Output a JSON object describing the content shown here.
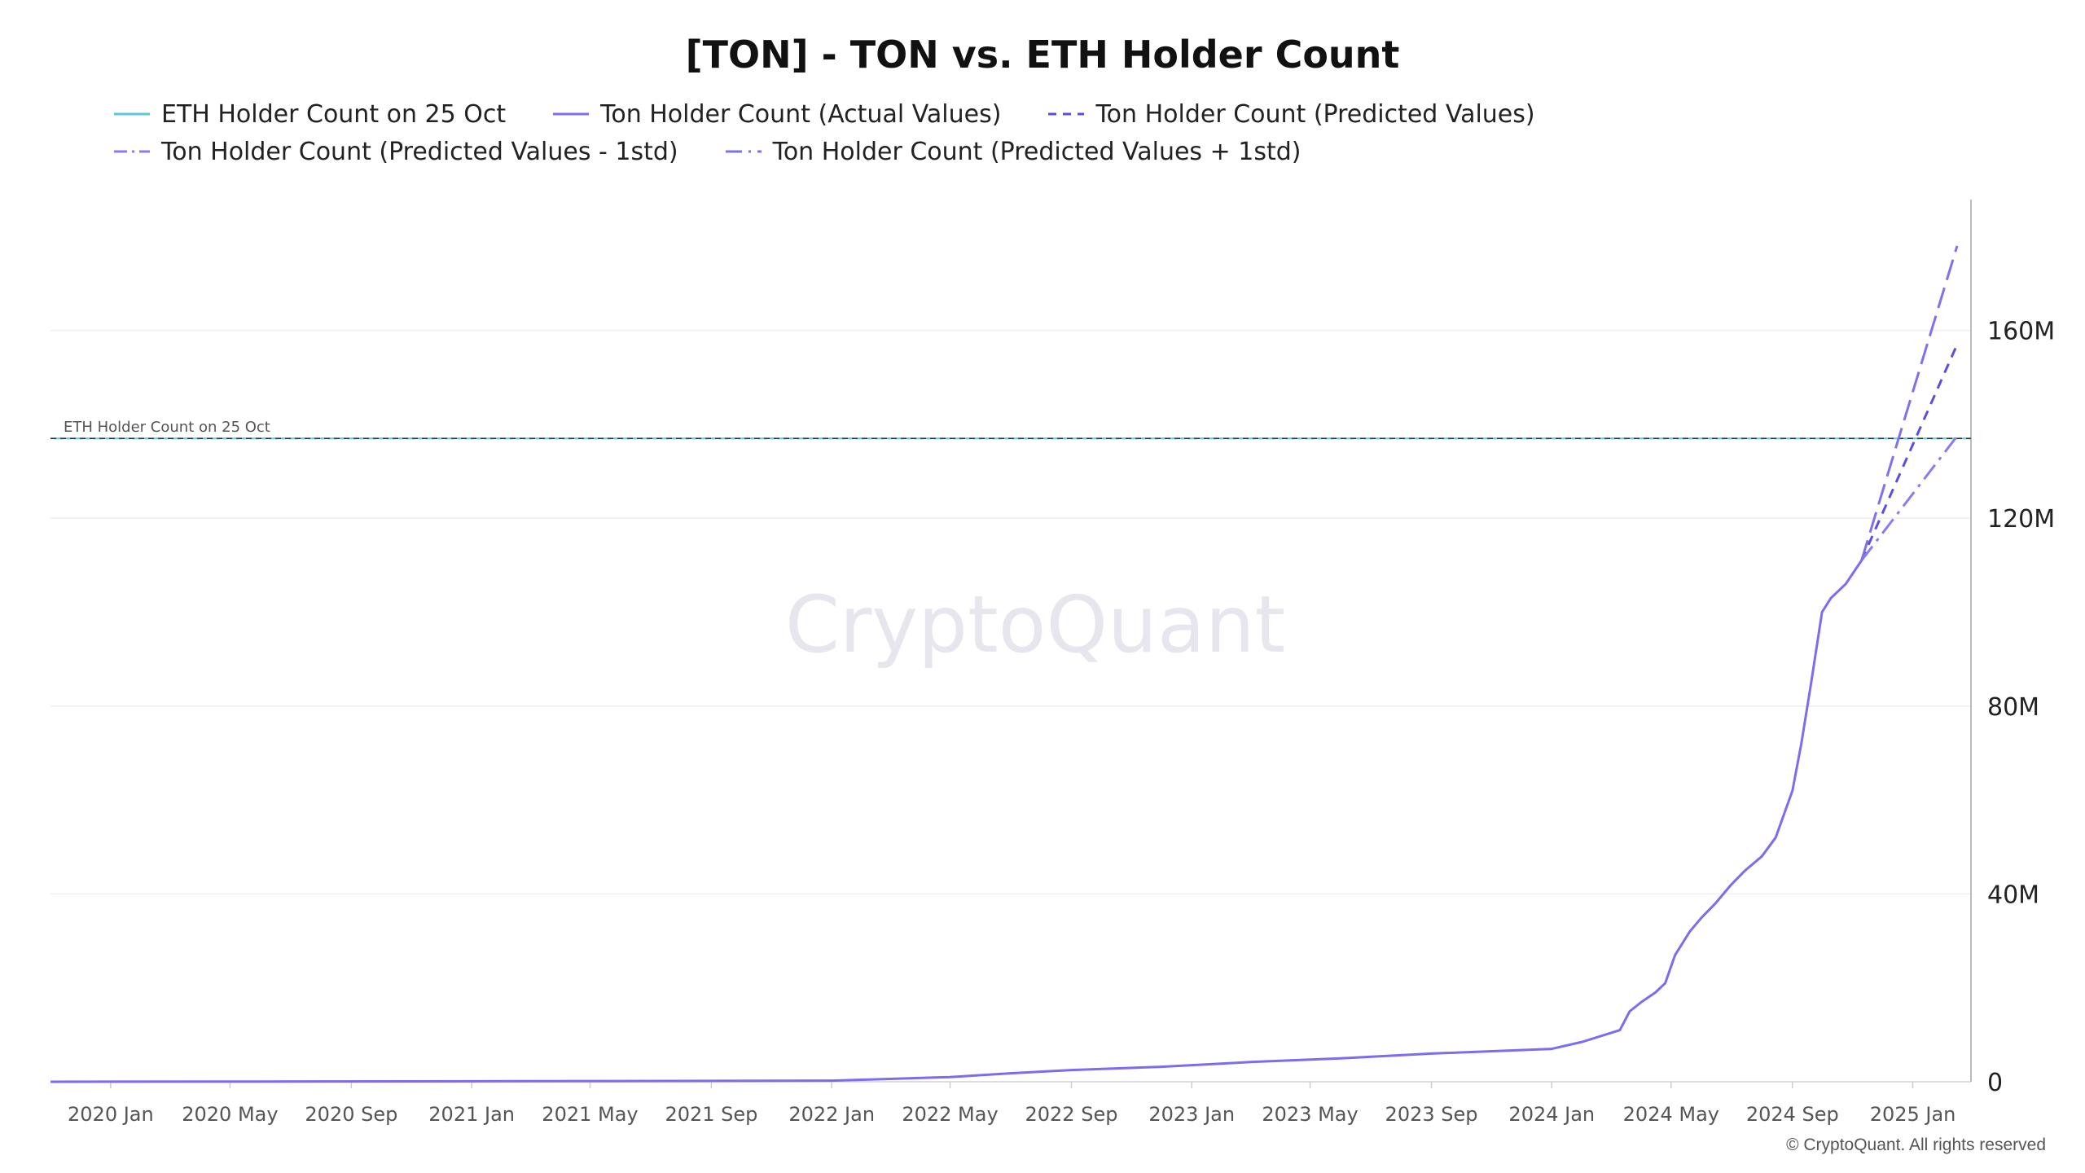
{
  "chart_data": {
    "type": "line",
    "title": "[TON] - TON vs. ETH Holder Count",
    "legend_placement": "top",
    "x_ticks": [
      "2020 Jan",
      "2020 May",
      "2020 Sep",
      "2021 Jan",
      "2021 May",
      "2021 Sep",
      "2022 Jan",
      "2022 May",
      "2022 Sep",
      "2023 Jan",
      "2023 May",
      "2023 Sep",
      "2024 Jan",
      "2024 May",
      "2024 Sep",
      "2025 Jan"
    ],
    "x_range": [
      "2019-11-01",
      "2025-03-01"
    ],
    "y_ticks": [
      0,
      40000000,
      80000000,
      120000000,
      160000000
    ],
    "y_tick_labels": [
      "0",
      "40M",
      "80M",
      "120M",
      "160M"
    ],
    "ylim": [
      0,
      187000000
    ],
    "grid": true,
    "y_axis_position": "right",
    "watermark": "CryptoQuant",
    "annotation": "ETH Holder Count on 25 Oct",
    "copyright": "© CryptoQuant. All rights reserved",
    "series": [
      {
        "name": "ETH Holder Count on 25 Oct",
        "color": "#5bc8d8",
        "style": "solid",
        "x": [
          "2019-11-01",
          "2025-03-01"
        ],
        "y": [
          137000000,
          137000000
        ]
      },
      {
        "name": "Ton Holder Count (Actual Values)",
        "color": "#7b6cf0",
        "style": "solid",
        "x": [
          "2019-11-01",
          "2020-06-01",
          "2021-01-01",
          "2021-06-01",
          "2022-01-01",
          "2022-03-01",
          "2022-05-01",
          "2022-07-01",
          "2022-09-01",
          "2022-12-01",
          "2023-03-01",
          "2023-06-01",
          "2023-09-01",
          "2024-01-01",
          "2024-02-01",
          "2024-03-10",
          "2024-03-20",
          "2024-04-01",
          "2024-04-15",
          "2024-04-25",
          "2024-05-05",
          "2024-05-20",
          "2024-06-01",
          "2024-06-15",
          "2024-07-01",
          "2024-07-15",
          "2024-08-01",
          "2024-08-15",
          "2024-09-01",
          "2024-09-10",
          "2024-09-20",
          "2024-10-01",
          "2024-10-10",
          "2024-10-25",
          "2024-11-10"
        ],
        "y": [
          0,
          50000,
          100000,
          150000,
          250000,
          600000,
          1000000,
          1800000,
          2500000,
          3200000,
          4200000,
          5000000,
          6000000,
          7000000,
          8500000,
          11000000,
          15000000,
          17000000,
          19000000,
          21000000,
          27000000,
          32000000,
          35000000,
          38000000,
          42000000,
          45000000,
          48000000,
          52000000,
          62000000,
          72000000,
          85000000,
          100000000,
          103000000,
          106000000,
          111000000
        ]
      },
      {
        "name": "Ton Holder Count (Predicted Values)",
        "color": "#5a4ee0",
        "style": "dashed",
        "x": [
          "2024-11-10",
          "2025-02-15"
        ],
        "y": [
          111000000,
          157000000
        ]
      },
      {
        "name": "Ton Holder Count (Predicted Values - 1std)",
        "color": "#8a7cf0",
        "style": "dashdot",
        "x": [
          "2024-11-10",
          "2025-02-15"
        ],
        "y": [
          111000000,
          137500000
        ]
      },
      {
        "name": "Ton Holder Count (Predicted Values + 1std)",
        "color": "#7f70ee",
        "style": "longdash",
        "x": [
          "2024-11-10",
          "2025-02-15"
        ],
        "y": [
          111000000,
          178000000
        ]
      }
    ]
  }
}
